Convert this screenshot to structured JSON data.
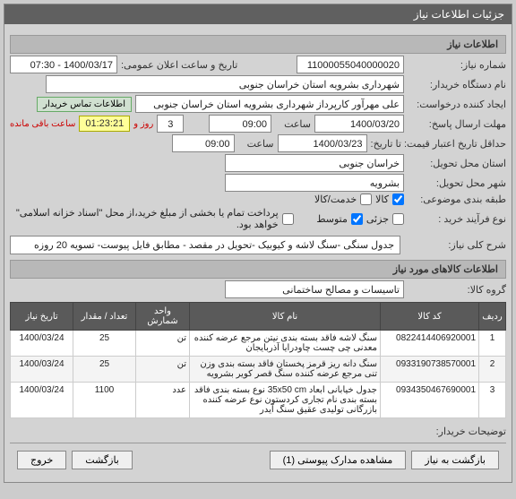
{
  "panel_title": "جزئیات اطلاعات نیاز",
  "sections": {
    "info_title": "اطلاعات نیاز",
    "items_title": "اطلاعات کالاهای مورد نیاز"
  },
  "fields": {
    "need_no_label": "شماره نیاز:",
    "need_no": "11000055040000020",
    "announce_label": "تاریخ و ساعت اعلان عمومی:",
    "announce": "1400/03/17 - 07:30",
    "buyer_label": "نام دستگاه خریدار:",
    "buyer": "شهرداری بشرویه استان خراسان جنوبی",
    "creator_label": "ایجاد کننده درخواست:",
    "creator": "علی مهرآور کارپرداز شهرداری بشرویه استان خراسان جنوبی",
    "contact_btn": "اطلاعات تماس خریدار",
    "deadline_send_label": "مهلت ارسال پاسخ:",
    "deadline_send_date": "1400/03/20",
    "hour_label": "ساعت",
    "deadline_send_time": "09:00",
    "day_label_num": "3",
    "day_label": "روز و",
    "countdown": "01:23:21",
    "remaining": "ساعت باقی مانده",
    "min_valid_label": "حداقل تاریخ اعتبار قیمت: تا تاریخ:",
    "min_valid_date": "1400/03/23",
    "min_valid_time": "09:00",
    "province_label": "استان محل تحویل:",
    "province": "خراسان جنوبی",
    "city_label": "شهر محل تحویل:",
    "city": "بشرویه",
    "pack_label": "طبقه بندی موضوعی:",
    "pack_goods": "کالا",
    "pack_service": "خدمت/کالا",
    "buy_type_label": "نوع فرآیند خرید :",
    "buy_type_low": "جزئی",
    "buy_type_mid": "متوسط",
    "partial_pay": "پرداخت تمام یا بخشی از مبلغ خرید،از محل \"اسناد خزانه اسلامی\" خواهد بود.",
    "desc_label": "شرح کلی نیاز:",
    "desc": "جدول سنگی -سنگ لاشه و کیوبیک -تحویل در مقصد - مطابق فایل پیوست- تسویه 20 روزه",
    "group_label": "گروه کالا:",
    "group": "تاسیسات و مصالح ساختمانی",
    "buyer_notes_label": "توضیحات خریدار:"
  },
  "table": {
    "columns": [
      "ردیف",
      "کد کالا",
      "نام کالا",
      "واحد شمارش",
      "تعداد / مقدار",
      "تاریخ نیاز"
    ],
    "col_widths": [
      "30px",
      "110px",
      "auto",
      "60px",
      "70px",
      "70px"
    ],
    "rows": [
      [
        "1",
        "0822414406920001",
        "سنگ لاشه فاقد بسته بندی نیتن مرجع عرضه کننده معدنی چی چست چاودرایا آذربایجان",
        "تن",
        "25",
        "1400/03/24"
      ],
      [
        "2",
        "0933190738570001",
        "سنگ دانه ریز قرمز پخستان فاقد بسته بندی وزن تنی مرجع عرضه کننده سنگ قصر کویر بشرویه",
        "تن",
        "25",
        "1400/03/24"
      ],
      [
        "3",
        "0934350467690001",
        "جدول خیابانی ابعاد 35x50 cm نوع بسته بندی فاقد بسته بندی نام تجاری کردستون نوع عرضه کننده بازرگانی تولیدی عقیق سنگ آیدر",
        "عدد",
        "1100",
        "1400/03/24"
      ]
    ]
  },
  "footer": {
    "back": "بازگشت به نیاز",
    "attach": "مشاهده مدارک پیوستی (1)",
    "return": "بازگشت",
    "exit": "خروج"
  }
}
